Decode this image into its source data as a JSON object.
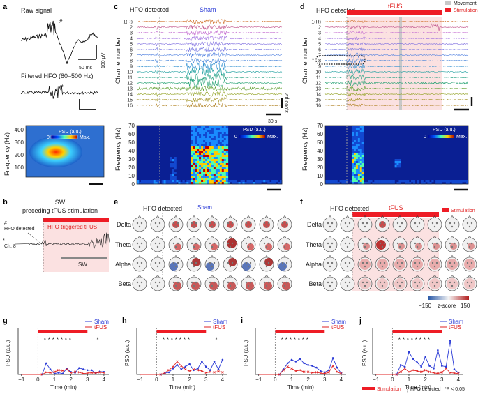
{
  "panel_letters": {
    "a": "a",
    "b": "b",
    "c": "c",
    "d": "d",
    "e": "e",
    "f": "f",
    "g": "g",
    "h": "h",
    "i": "i",
    "j": "j"
  },
  "panel_a": {
    "raw_title": "Raw signal",
    "hash": "#",
    "time_scale": "50 ms",
    "amp_scale": "100 µV",
    "filtered_title": "Filtered HFO (80–500 Hz)",
    "freq_label": "Frequency (Hz)",
    "yticks": [
      "400",
      "300",
      "200",
      "100"
    ],
    "psd_label": "PSD (a.u.)",
    "psd_min": "0",
    "psd_max": "Max."
  },
  "panel_b": {
    "title_line1": "SW",
    "title_line2": "preceding tFUS stimulation",
    "hash": "#",
    "hfo_label": "HFO detected",
    "star": "*",
    "ch_label": "Ch. 8",
    "bar_label": "HFO triggered tFUS",
    "sw_label": "SW"
  },
  "panel_c": {
    "hfo_label": "HFO detected",
    "condition": "Sham",
    "ylabel": "Channel number",
    "channels": [
      "1(R)",
      "2",
      "3",
      "4",
      "5",
      "6",
      "7",
      "8",
      "9",
      "10",
      "11",
      "12",
      "13",
      "14",
      "15",
      "16"
    ],
    "time_scale": "30 s",
    "amp_scale": "3,000 µV",
    "freq_label": "Frequency (Hz)",
    "yticks": [
      "70",
      "60",
      "50",
      "40",
      "30",
      "20",
      "10",
      "0"
    ],
    "psd_label": "PSD (a.u.)",
    "psd_min": "0",
    "psd_max": "Max."
  },
  "panel_d": {
    "hfo_label": "HFO detected",
    "condition": "tFUS",
    "legend_movement": "Movement",
    "legend_stimulation": "Stimulation",
    "ylabel": "Channel number",
    "star": "*",
    "channels": [
      "1(R)",
      "2",
      "3",
      "4",
      "5",
      "6",
      "7",
      "8",
      "9",
      "10",
      "11",
      "12",
      "13",
      "14",
      "15",
      "16"
    ],
    "freq_label": "Frequency (Hz)",
    "yticks": [
      "70",
      "60",
      "50",
      "40",
      "30",
      "20",
      "10",
      "0"
    ],
    "psd_label": "PSD (a.u.)",
    "psd_min": "0",
    "psd_max": "Max."
  },
  "panel_e": {
    "hfo_label": "HFO detected",
    "condition": "Sham",
    "bands": [
      "Delta",
      "Theta",
      "Alpha",
      "Beta"
    ]
  },
  "panel_f": {
    "hfo_label": "HFO detected",
    "condition": "tFUS",
    "legend_stimulation": "Stimulation",
    "bands": [
      "Delta",
      "Theta",
      "Alpha",
      "Beta"
    ],
    "cbar_min": "−150",
    "cbar_max": "150",
    "cbar_label": "z-score"
  },
  "bottom_legend": {
    "stimulation": "Stimulation",
    "hfo_detected": "HFO detected",
    "significance": "*P < 0.05"
  },
  "colors": {
    "sham": "#2b3bd6",
    "tfus": "#e02020",
    "stim": "#ee1c25",
    "movement": "#c8c8c8"
  },
  "chart_data": [
    {
      "type": "line",
      "panel": "g",
      "xlabel": "Time (min)",
      "ylabel": "PSD (a.u.)",
      "xlim": [
        -1.2,
        4.3
      ],
      "ylim": [
        0,
        1
      ],
      "xticks": [
        "-1",
        "0",
        "1",
        "2",
        "3",
        "4"
      ],
      "stim_interval": [
        0,
        3
      ],
      "stars": "* * * * * * *",
      "star_extra": "*",
      "series": [
        {
          "name": "Sham",
          "x": [
            -1,
            -0.75,
            -0.5,
            -0.25,
            0,
            0.25,
            0.5,
            0.75,
            1,
            1.25,
            1.5,
            1.75,
            2,
            2.25,
            2.5,
            2.75,
            3,
            3.25,
            3.5,
            3.75,
            4
          ],
          "values": [
            0,
            0,
            0,
            0,
            0,
            0,
            0.26,
            0.12,
            0.02,
            0.04,
            0.02,
            0.14,
            0.06,
            0.04,
            0.15,
            0.12,
            0.1,
            0.1,
            0.03,
            0.07,
            0.06
          ]
        },
        {
          "name": "tFUS",
          "x": [
            -1,
            -0.75,
            -0.5,
            -0.25,
            0,
            0.25,
            0.5,
            0.75,
            1,
            1.25,
            1.5,
            1.75,
            2,
            2.25,
            2.5,
            2.75,
            3,
            3.25,
            3.5,
            3.75,
            4
          ],
          "values": [
            0,
            0,
            0,
            0,
            0,
            0,
            0.05,
            0.04,
            0.06,
            0.1,
            0.09,
            0.12,
            0.04,
            0.06,
            0.05,
            0.02,
            0.03,
            0.04,
            0.03,
            0.05,
            0.04
          ]
        }
      ]
    },
    {
      "type": "line",
      "panel": "h",
      "xlabel": "Time (min)",
      "ylabel": "PSD (a.u.)",
      "xlim": [
        -1.2,
        4.3
      ],
      "ylim": [
        0,
        1
      ],
      "xticks": [
        "-1",
        "0",
        "1",
        "2",
        "3",
        "4"
      ],
      "stim_interval": [
        0,
        3
      ],
      "stars": "* * * * * * *",
      "star_extra": "*",
      "series": [
        {
          "name": "Sham",
          "x": [
            -1,
            -0.75,
            -0.5,
            -0.25,
            0,
            0.25,
            0.5,
            0.75,
            1,
            1.25,
            1.5,
            1.75,
            2,
            2.25,
            2.5,
            2.75,
            3,
            3.25,
            3.5,
            3.75,
            4
          ],
          "values": [
            0,
            0,
            0,
            0,
            0,
            0,
            0.03,
            0.05,
            0.14,
            0.22,
            0.12,
            0.18,
            0.24,
            0.1,
            0.14,
            0.3,
            0.18,
            0.1,
            0.3,
            0.12,
            0.34
          ]
        },
        {
          "name": "tFUS",
          "x": [
            -1,
            -0.75,
            -0.5,
            -0.25,
            0,
            0.25,
            0.5,
            0.75,
            1,
            1.25,
            1.5,
            1.75,
            2,
            2.25,
            2.5,
            2.75,
            3,
            3.25,
            3.5,
            3.75,
            4
          ],
          "values": [
            0,
            0,
            0,
            0,
            0,
            0,
            0.04,
            0.1,
            0.18,
            0.3,
            0.2,
            0.12,
            0.08,
            0.12,
            0.1,
            0.08,
            0.04,
            0.06,
            0.05,
            0.07,
            0.05
          ]
        }
      ]
    },
    {
      "type": "line",
      "panel": "i",
      "xlabel": "Time (min)",
      "ylabel": "PSD (a.u.)",
      "xlim": [
        -1.2,
        4.3
      ],
      "ylim": [
        0,
        1
      ],
      "xticks": [
        "-1",
        "0",
        "1",
        "2",
        "3",
        "4"
      ],
      "stim_interval": [
        0,
        3
      ],
      "stars": "* * * * * * *",
      "star_extra": "",
      "series": [
        {
          "name": "Sham",
          "x": [
            -1,
            -0.75,
            -0.5,
            -0.25,
            0,
            0.25,
            0.5,
            0.75,
            1,
            1.25,
            1.5,
            1.75,
            2,
            2.25,
            2.5,
            2.75,
            3,
            3.25,
            3.5,
            3.75,
            4
          ],
          "values": [
            0,
            0,
            0,
            0,
            0,
            0,
            0.12,
            0.26,
            0.34,
            0.3,
            0.36,
            0.26,
            0.22,
            0.2,
            0.16,
            0.08,
            0.05,
            0.1,
            0.38,
            0.16,
            0.03
          ]
        },
        {
          "name": "tFUS",
          "x": [
            -1,
            -0.75,
            -0.5,
            -0.25,
            0,
            0.25,
            0.5,
            0.75,
            1,
            1.25,
            1.5,
            1.75,
            2,
            2.25,
            2.5,
            2.75,
            3,
            3.25,
            3.5,
            3.75,
            4
          ],
          "values": [
            0,
            0,
            0,
            0,
            0,
            0,
            0.1,
            0.18,
            0.14,
            0.08,
            0.1,
            0.06,
            0.06,
            0.04,
            0.05,
            0.03,
            0.02,
            0.05,
            0.2,
            0.06,
            0.02
          ]
        }
      ]
    },
    {
      "type": "line",
      "panel": "j",
      "xlabel": "Time (min)",
      "ylabel": "PSD (a.u.)",
      "xlim": [
        -1.2,
        4.3
      ],
      "ylim": [
        0,
        1
      ],
      "xticks": [
        "-1",
        "0",
        "1",
        "2",
        "3",
        "4"
      ],
      "stim_interval": [
        0,
        3
      ],
      "stars": "* * * * * * * *",
      "star_extra": "",
      "series": [
        {
          "name": "Sham",
          "x": [
            -1,
            -0.75,
            -0.5,
            -0.25,
            0,
            0.25,
            0.5,
            0.75,
            1,
            1.25,
            1.5,
            1.75,
            2,
            2.25,
            2.5,
            2.75,
            3,
            3.25,
            3.5,
            3.75,
            4
          ],
          "values": [
            0,
            0,
            0,
            0,
            0,
            0,
            0.22,
            0.18,
            0.52,
            0.36,
            0.28,
            0.18,
            0.4,
            0.2,
            0.14,
            0.56,
            0.2,
            0.18,
            0.78,
            0.12,
            0.04
          ]
        },
        {
          "name": "tFUS",
          "x": [
            -1,
            -0.75,
            -0.5,
            -0.25,
            0,
            0.25,
            0.5,
            0.75,
            1,
            1.25,
            1.5,
            1.75,
            2,
            2.25,
            2.5,
            2.75,
            3,
            3.25,
            3.5,
            3.75,
            4
          ],
          "values": [
            0,
            0,
            0,
            0,
            0,
            0,
            0.06,
            0.14,
            0.06,
            0.1,
            0.08,
            0.06,
            0.1,
            0.06,
            0.04,
            0.02,
            0.05,
            0.14,
            0.04,
            0.03,
            0.02
          ]
        }
      ]
    }
  ]
}
